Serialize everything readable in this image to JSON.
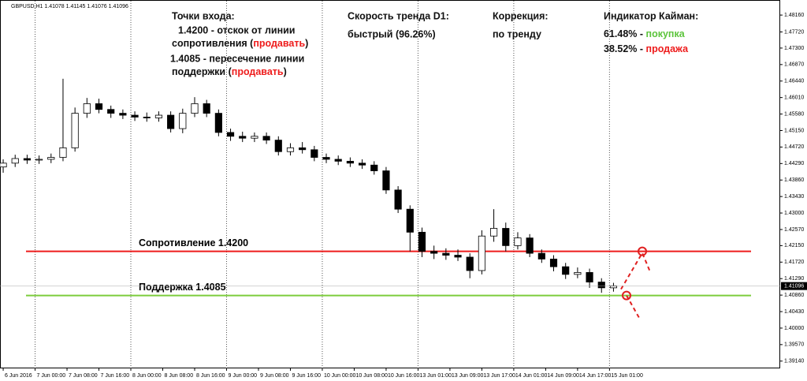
{
  "chart_data": {
    "type": "candlestick",
    "header": "GBPUSD,H1  1.41078 1.41145 1.41076 1.41096",
    "x": [
      0,
      3,
      6,
      9,
      12,
      15,
      18,
      21,
      24,
      27,
      30,
      33,
      36,
      39,
      42,
      45,
      48,
      51,
      54,
      57,
      60,
      63,
      66,
      69,
      72,
      75,
      78,
      81,
      84,
      87,
      90,
      93,
      96,
      99,
      102,
      105,
      108,
      111,
      114,
      117,
      120,
      123,
      126,
      129,
      132,
      135,
      138,
      141,
      144,
      147,
      150,
      153
    ],
    "open": [
      1.442,
      1.443,
      1.4442,
      1.4438,
      1.444,
      1.4445,
      1.447,
      1.456,
      1.4585,
      1.457,
      1.456,
      1.4555,
      1.455,
      1.4548,
      1.4555,
      1.452,
      1.456,
      1.4585,
      1.456,
      1.451,
      1.45,
      1.4495,
      1.45,
      1.449,
      1.446,
      1.447,
      1.4465,
      1.4445,
      1.444,
      1.4435,
      1.443,
      1.4425,
      1.441,
      1.436,
      1.431,
      1.425,
      1.42,
      1.4195,
      1.419,
      1.4185,
      1.415,
      1.424,
      1.426,
      1.4215,
      1.4235,
      1.4195,
      1.418,
      1.416,
      1.414,
      1.4145,
      1.412,
      1.4105
    ],
    "high": [
      1.444,
      1.4452,
      1.4452,
      1.445,
      1.4455,
      1.465,
      1.4575,
      1.46,
      1.4598,
      1.458,
      1.457,
      1.4565,
      1.4562,
      1.4565,
      1.4565,
      1.4572,
      1.4602,
      1.4595,
      1.457,
      1.452,
      1.4512,
      1.451,
      1.451,
      1.45,
      1.4482,
      1.4485,
      1.4475,
      1.4455,
      1.445,
      1.4445,
      1.444,
      1.4435,
      1.442,
      1.437,
      1.432,
      1.4262,
      1.4215,
      1.4208,
      1.4205,
      1.4195,
      1.4255,
      1.431,
      1.4275,
      1.425,
      1.4245,
      1.4205,
      1.419,
      1.417,
      1.4158,
      1.4155,
      1.413,
      1.4118
    ],
    "low": [
      1.4405,
      1.442,
      1.4428,
      1.4428,
      1.443,
      1.4435,
      1.446,
      1.4548,
      1.456,
      1.4548,
      1.4545,
      1.454,
      1.4538,
      1.4538,
      1.451,
      1.4508,
      1.455,
      1.455,
      1.45,
      1.4488,
      1.4485,
      1.4485,
      1.448,
      1.445,
      1.445,
      1.4455,
      1.4435,
      1.443,
      1.4425,
      1.442,
      1.4415,
      1.44,
      1.435,
      1.43,
      1.42,
      1.4185,
      1.418,
      1.4178,
      1.4175,
      1.413,
      1.414,
      1.4225,
      1.42,
      1.4205,
      1.4185,
      1.417,
      1.4148,
      1.4128,
      1.413,
      1.4105,
      1.4092,
      1.4095
    ],
    "close": [
      1.443,
      1.4442,
      1.4438,
      1.444,
      1.4445,
      1.447,
      1.456,
      1.4585,
      1.457,
      1.456,
      1.4555,
      1.455,
      1.4548,
      1.4555,
      1.452,
      1.456,
      1.4585,
      1.456,
      1.451,
      1.45,
      1.4495,
      1.45,
      1.449,
      1.446,
      1.447,
      1.4465,
      1.4445,
      1.444,
      1.4435,
      1.443,
      1.4425,
      1.441,
      1.436,
      1.431,
      1.425,
      1.42,
      1.4195,
      1.419,
      1.4185,
      1.415,
      1.424,
      1.426,
      1.4215,
      1.4235,
      1.4195,
      1.418,
      1.416,
      1.414,
      1.4145,
      1.412,
      1.4105,
      1.411
    ],
    "xlim": [
      -0.8,
      194.8
    ],
    "xticks": [
      {
        "value": 0,
        "label": "6 Jun 2016"
      },
      {
        "value": 8,
        "label": "7 Jun 00:00"
      },
      {
        "value": 16,
        "label": "7 Jun 08:00"
      },
      {
        "value": 24,
        "label": "7 Jun 16:00"
      },
      {
        "value": 32,
        "label": "8 Jun 00:00"
      },
      {
        "value": 40,
        "label": "8 Jun 08:00"
      },
      {
        "value": 48,
        "label": "8 Jun 16:00"
      },
      {
        "value": 56,
        "label": "9 Jun 00:00"
      },
      {
        "value": 64,
        "label": "9 Jun 08:00"
      },
      {
        "value": 72,
        "label": "9 Jun 16:00"
      },
      {
        "value": 80,
        "label": "10 Jun 00:00"
      },
      {
        "value": 88,
        "label": "10 Jun 08:00"
      },
      {
        "value": 96,
        "label": "10 Jun 16:00"
      },
      {
        "value": 104,
        "label": "13 Jun 01:00"
      },
      {
        "value": 112,
        "label": "13 Jun 09:00"
      },
      {
        "value": 120,
        "label": "13 Jun 17:00"
      },
      {
        "value": 128,
        "label": "14 Jun 01:00"
      },
      {
        "value": 136,
        "label": "14 Jun 09:00"
      },
      {
        "value": 144,
        "label": "14 Jun 17:00"
      },
      {
        "value": 152,
        "label": "15 Jun 01:00"
      }
    ],
    "ylim": [
      1.3895,
      1.4845
    ],
    "yticks": [
      {
        "value": 1.4816,
        "label": "1.48160"
      },
      {
        "value": 1.4772,
        "label": "1.47720"
      },
      {
        "value": 1.473,
        "label": "1.47300"
      },
      {
        "value": 1.4687,
        "label": "1.46870"
      },
      {
        "value": 1.4644,
        "label": "1.46440"
      },
      {
        "value": 1.4601,
        "label": "1.46010"
      },
      {
        "value": 1.4558,
        "label": "1.45580"
      },
      {
        "value": 1.4515,
        "label": "1.45150"
      },
      {
        "value": 1.4472,
        "label": "1.44720"
      },
      {
        "value": 1.4429,
        "label": "1.44290"
      },
      {
        "value": 1.4386,
        "label": "1.43860"
      },
      {
        "value": 1.4343,
        "label": "1.43430"
      },
      {
        "value": 1.43,
        "label": "1.43000"
      },
      {
        "value": 1.4257,
        "label": "1.42570"
      },
      {
        "value": 1.4215,
        "label": "1.42150"
      },
      {
        "value": 1.4172,
        "label": "1.41720"
      },
      {
        "value": 1.4129,
        "label": "1.41290"
      },
      {
        "value": 1.4086,
        "label": "1.40860"
      },
      {
        "value": 1.4043,
        "label": "1.40430"
      },
      {
        "value": 1.4,
        "label": "1.40000"
      },
      {
        "value": 1.3957,
        "label": "1.39570"
      },
      {
        "value": 1.3914,
        "label": "1.39140"
      }
    ],
    "current_price": {
      "value": 1.41096,
      "label": "1.41096"
    },
    "hlines": [
      {
        "name": "Сопротивление 1.4200",
        "value": 1.42,
        "color": "#ee1c1c"
      },
      {
        "name": "Поддержка 1.4085",
        "value": 1.4085,
        "color": "#7ccc3c"
      }
    ],
    "annotations": {
      "entry_title": "Точки входа:",
      "entry_1a": "1.4200 - отскок от линии",
      "entry_1b": [
        "сопротивления (",
        "продавать",
        ")"
      ],
      "entry_2a": "1.4085 - пересечение линии",
      "entry_2b": [
        "поддержки (",
        "продавать",
        ")"
      ],
      "speed_title": "Скорость тренда D1:",
      "speed_value": "быстрый (96.26%)",
      "correction_title": "Коррекция:",
      "correction_value": "по тренду",
      "kayman_title": "Индикатор Кайман:",
      "kayman_buy": [
        "61.48% - ",
        "покупка"
      ],
      "kayman_sell": [
        "38.52% - ",
        "продажа"
      ]
    }
  }
}
